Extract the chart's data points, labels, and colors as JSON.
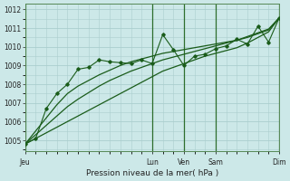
{
  "background_color": "#cce8e8",
  "grid_color": "#aacece",
  "line_color": "#1a5c1a",
  "xlabel": "Pression niveau de la mer( hPa )",
  "ylim": [
    1004.4,
    1012.3
  ],
  "yticks": [
    1005,
    1006,
    1007,
    1008,
    1009,
    1010,
    1011,
    1012
  ],
  "xtick_labels": [
    "Jeu",
    "Lun",
    "Ven",
    "Sam",
    "Dim"
  ],
  "xtick_positions": [
    0,
    12,
    15,
    18,
    24
  ],
  "total_points": 25,
  "series_main": [
    1004.8,
    1005.1,
    1006.7,
    1007.5,
    1008.0,
    1008.8,
    1008.9,
    1009.3,
    1009.2,
    1009.15,
    1009.1,
    1009.3,
    1009.1,
    1010.65,
    1009.85,
    1009.0,
    1009.5,
    1009.6,
    1009.9,
    1010.05,
    1010.4,
    1010.15,
    1011.1,
    1010.25,
    1011.55
  ],
  "series_smooth1": [
    1004.8,
    1005.5,
    1006.2,
    1006.9,
    1007.5,
    1007.9,
    1008.2,
    1008.5,
    1008.75,
    1009.0,
    1009.2,
    1009.35,
    1009.5,
    1009.65,
    1009.75,
    1009.85,
    1009.95,
    1010.05,
    1010.15,
    1010.25,
    1010.35,
    1010.55,
    1010.75,
    1010.95,
    1011.55
  ],
  "series_smooth2": [
    1004.8,
    1005.3,
    1005.8,
    1006.3,
    1006.8,
    1007.2,
    1007.55,
    1007.9,
    1008.2,
    1008.45,
    1008.7,
    1008.9,
    1009.1,
    1009.3,
    1009.45,
    1009.6,
    1009.75,
    1009.9,
    1010.05,
    1010.2,
    1010.35,
    1010.5,
    1010.7,
    1010.9,
    1011.55
  ],
  "series_smooth3": [
    1004.8,
    1005.1,
    1005.4,
    1005.7,
    1006.0,
    1006.3,
    1006.6,
    1006.9,
    1007.2,
    1007.5,
    1007.8,
    1008.1,
    1008.4,
    1008.7,
    1008.9,
    1009.1,
    1009.3,
    1009.5,
    1009.65,
    1009.8,
    1009.95,
    1010.2,
    1010.5,
    1010.8,
    1011.55
  ],
  "vline_positions": [
    0,
    12,
    15,
    18,
    24
  ]
}
